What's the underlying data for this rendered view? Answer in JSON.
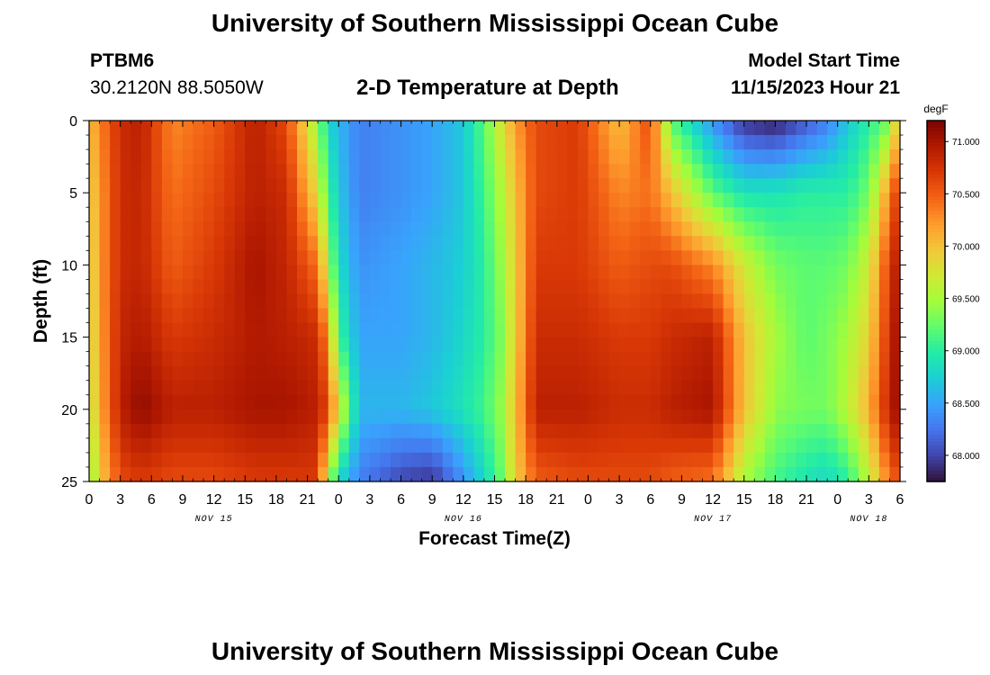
{
  "header": {
    "title": "University of Southern Mississippi Ocean Cube",
    "station_id": "PTBM6",
    "coordinates": "30.2120N  88.5050W",
    "subtitle": "2-D Temperature at Depth",
    "model_label": "Model Start Time",
    "model_time": "11/15/2023 Hour 21"
  },
  "footer": {
    "title": "University of Southern Mississippi Ocean Cube"
  },
  "chart_data": {
    "type": "heatmap",
    "title": "2-D Temperature at Depth",
    "xlabel": "Forecast Time(Z)",
    "ylabel": "Depth (ft)",
    "x_range": [
      0,
      78
    ],
    "y_range": [
      0,
      25
    ],
    "x_ticks": [
      {
        "t": 0,
        "label": "0"
      },
      {
        "t": 3,
        "label": "3"
      },
      {
        "t": 6,
        "label": "6"
      },
      {
        "t": 9,
        "label": "9"
      },
      {
        "t": 12,
        "label": "12"
      },
      {
        "t": 15,
        "label": "15"
      },
      {
        "t": 18,
        "label": "18"
      },
      {
        "t": 21,
        "label": "21"
      },
      {
        "t": 24,
        "label": "0"
      },
      {
        "t": 27,
        "label": "3"
      },
      {
        "t": 30,
        "label": "6"
      },
      {
        "t": 33,
        "label": "9"
      },
      {
        "t": 36,
        "label": "12"
      },
      {
        "t": 39,
        "label": "15"
      },
      {
        "t": 42,
        "label": "18"
      },
      {
        "t": 45,
        "label": "21"
      },
      {
        "t": 48,
        "label": "0"
      },
      {
        "t": 51,
        "label": "3"
      },
      {
        "t": 54,
        "label": "6"
      },
      {
        "t": 57,
        "label": "9"
      },
      {
        "t": 60,
        "label": "12"
      },
      {
        "t": 63,
        "label": "15"
      },
      {
        "t": 66,
        "label": "18"
      },
      {
        "t": 69,
        "label": "21"
      },
      {
        "t": 72,
        "label": "0"
      },
      {
        "t": 75,
        "label": "3"
      },
      {
        "t": 78,
        "label": "6"
      }
    ],
    "date_labels": [
      {
        "t": 12,
        "label": "NOV 15"
      },
      {
        "t": 36,
        "label": "NOV 16"
      },
      {
        "t": 60,
        "label": "NOV 17"
      },
      {
        "t": 75,
        "label": "NOV 18"
      }
    ],
    "y_ticks": [
      0,
      5,
      10,
      15,
      20,
      25
    ],
    "colorbar": {
      "unit": "degF",
      "min": 67.75,
      "max": 71.2,
      "ticks": [
        68.0,
        68.5,
        69.0,
        69.5,
        70.0,
        70.5,
        71.0
      ],
      "tick_labels": [
        "68.000",
        "68.500",
        "69.000",
        "69.500",
        "70.000",
        "70.500",
        "71.000"
      ],
      "colors": [
        "#30123b",
        "#4145ab",
        "#4675ed",
        "#39a2fc",
        "#1bcfd4",
        "#24eca6",
        "#61fc6c",
        "#a4fc3b",
        "#d1e834",
        "#f3c63a",
        "#fe9b2d",
        "#f36315",
        "#d93806",
        "#b11901",
        "#7a0402"
      ]
    },
    "profile_times": [
      0,
      1,
      3,
      5,
      8,
      12,
      16,
      19,
      22,
      23,
      24,
      26,
      30,
      33,
      36,
      38,
      39.5,
      41,
      43,
      47,
      51,
      54,
      56,
      60,
      63,
      66,
      69,
      71,
      73,
      75,
      77,
      78
    ],
    "profile_depths": [
      0,
      5,
      10,
      15,
      20,
      25
    ],
    "profile_values": [
      [
        70.0,
        69.85,
        69.75,
        69.7,
        69.6,
        69.3
      ],
      [
        70.3,
        70.2,
        70.2,
        70.15,
        70.1,
        69.9
      ],
      [
        70.8,
        70.8,
        70.8,
        70.85,
        70.9,
        70.6
      ],
      [
        70.9,
        70.85,
        70.85,
        70.95,
        71.1,
        70.7
      ],
      [
        70.3,
        70.4,
        70.5,
        70.7,
        70.9,
        70.6
      ],
      [
        70.5,
        70.6,
        70.7,
        70.8,
        70.9,
        70.6
      ],
      [
        70.9,
        70.9,
        71.0,
        70.95,
        71.0,
        70.7
      ],
      [
        70.6,
        70.8,
        70.85,
        70.9,
        71.0,
        70.7
      ],
      [
        69.4,
        69.8,
        70.4,
        70.8,
        70.9,
        70.7
      ],
      [
        68.8,
        69.1,
        69.5,
        70.2,
        70.6,
        69.5
      ],
      [
        68.6,
        68.7,
        68.85,
        69.1,
        69.8,
        68.8
      ],
      [
        68.3,
        68.3,
        68.4,
        68.5,
        68.6,
        68.3
      ],
      [
        68.4,
        68.4,
        68.5,
        68.5,
        68.6,
        68.0
      ],
      [
        68.5,
        68.5,
        68.6,
        68.6,
        68.7,
        67.9
      ],
      [
        68.7,
        68.7,
        68.75,
        68.8,
        68.9,
        68.4
      ],
      [
        69.2,
        69.1,
        69.0,
        69.0,
        69.1,
        68.8
      ],
      [
        69.7,
        69.5,
        69.4,
        69.3,
        69.4,
        69.2
      ],
      [
        70.2,
        70.0,
        69.9,
        69.9,
        70.0,
        69.9
      ],
      [
        70.6,
        70.6,
        70.7,
        70.8,
        70.9,
        70.5
      ],
      [
        70.7,
        70.7,
        70.7,
        70.8,
        70.9,
        70.6
      ],
      [
        70.0,
        70.3,
        70.5,
        70.7,
        70.8,
        70.6
      ],
      [
        70.6,
        70.4,
        70.6,
        70.7,
        70.8,
        70.6
      ],
      [
        69.2,
        70.0,
        70.6,
        70.8,
        70.9,
        70.5
      ],
      [
        68.4,
        69.2,
        70.3,
        70.9,
        71.0,
        70.4
      ],
      [
        67.9,
        68.9,
        69.7,
        70.0,
        70.0,
        69.5
      ],
      [
        67.8,
        68.9,
        69.3,
        69.5,
        69.4,
        69.1
      ],
      [
        68.1,
        69.0,
        69.2,
        69.2,
        69.3,
        68.9
      ],
      [
        68.3,
        69.0,
        69.2,
        69.3,
        69.3,
        68.8
      ],
      [
        68.7,
        69.0,
        69.3,
        69.5,
        69.6,
        69.0
      ],
      [
        69.0,
        69.3,
        69.7,
        69.9,
        70.1,
        69.6
      ],
      [
        69.3,
        70.3,
        70.7,
        70.8,
        70.9,
        70.4
      ],
      [
        70.2,
        70.8,
        71.0,
        71.1,
        71.1,
        70.6
      ]
    ]
  }
}
